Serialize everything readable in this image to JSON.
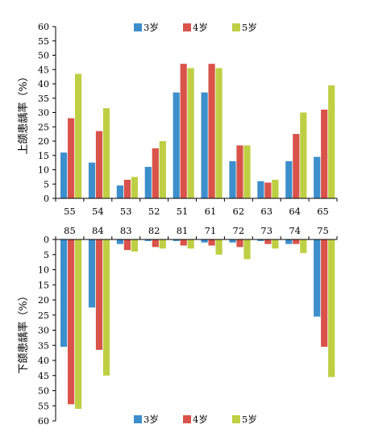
{
  "colors": {
    "age3": "#3d8fcc",
    "age4": "#d9534a",
    "age5": "#bfcf44"
  },
  "legend": [
    {
      "key": "age3",
      "label": "3岁"
    },
    {
      "key": "age4",
      "label": "4岁"
    },
    {
      "key": "age5",
      "label": "5岁"
    }
  ],
  "chart_data": [
    {
      "type": "bar",
      "ylabel": "上颌患龋率（%）",
      "ylim": [
        0,
        60
      ],
      "yticks": [
        0,
        5,
        10,
        15,
        20,
        25,
        30,
        35,
        40,
        45,
        50,
        55,
        60
      ],
      "categories": [
        "55",
        "54",
        "53",
        "52",
        "51",
        "61",
        "62",
        "63",
        "64",
        "65"
      ],
      "series": [
        {
          "name": "3岁",
          "values": [
            16,
            12.5,
            4.5,
            11,
            37,
            37,
            13,
            6,
            13,
            14.5
          ]
        },
        {
          "name": "4岁",
          "values": [
            28,
            23.5,
            6.5,
            17.5,
            47,
            47,
            18.5,
            5.5,
            22.5,
            31
          ]
        },
        {
          "name": "5岁",
          "values": [
            43.5,
            31.5,
            7.5,
            20,
            45.5,
            45.5,
            18.5,
            6.5,
            30,
            39.5
          ]
        }
      ]
    },
    {
      "type": "bar",
      "ylabel": "下颌患龋率（%）",
      "ylim": [
        0,
        60
      ],
      "inverted": true,
      "yticks": [
        0,
        5,
        10,
        15,
        20,
        25,
        30,
        35,
        40,
        45,
        50,
        55,
        60
      ],
      "categories": [
        "85",
        "84",
        "83",
        "82",
        "81",
        "71",
        "72",
        "73",
        "74",
        "75"
      ],
      "series": [
        {
          "name": "3岁",
          "values": [
            35.5,
            22.5,
            1.5,
            0.5,
            0.5,
            1,
            1,
            0.5,
            1.5,
            25.5
          ]
        },
        {
          "name": "4岁",
          "values": [
            54.5,
            36.5,
            3.5,
            2.5,
            2,
            2,
            2.5,
            1.5,
            1.5,
            35.5
          ]
        },
        {
          "name": "5岁",
          "values": [
            56,
            45,
            4,
            3,
            3,
            5,
            6.5,
            3,
            4.5,
            45.5
          ]
        }
      ]
    }
  ]
}
